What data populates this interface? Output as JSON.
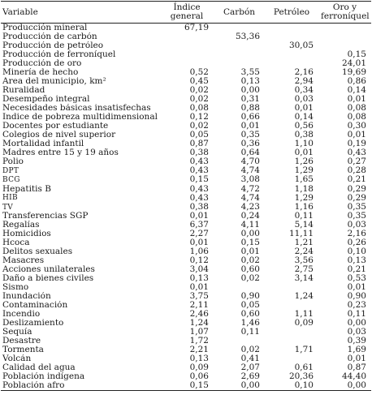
{
  "headers": {
    "variable": "Variable",
    "indice_general": "Índice general",
    "carbon": "Carbón",
    "petroleo": "Petróleo",
    "oro_ferroniquel": "Oro y ferroníquel"
  },
  "rows": [
    {
      "label": "Producción mineral",
      "ig": "67,19",
      "ca": "",
      "pe": "",
      "of": "",
      "sc": false
    },
    {
      "label": "Producción de carbón",
      "ig": "",
      "ca": "53,36",
      "pe": "",
      "of": "",
      "sc": false
    },
    {
      "label": "Producción de petróleo",
      "ig": "",
      "ca": "",
      "pe": "30,05",
      "of": "",
      "sc": false
    },
    {
      "label": "Producción de ferroníquel",
      "ig": "",
      "ca": "",
      "pe": "",
      "of": "0,15",
      "sc": false
    },
    {
      "label": "Producción de oro",
      "ig": "",
      "ca": "",
      "pe": "",
      "of": "24,01",
      "sc": false
    },
    {
      "label": "Minería de hecho",
      "ig": "0,52",
      "ca": "3,55",
      "pe": "2,16",
      "of": "19,69",
      "sc": false
    },
    {
      "label": "Área del municipio, km²",
      "ig": "0,45",
      "ca": "0,13",
      "pe": "2,94",
      "of": "0,86",
      "sc": false
    },
    {
      "label": "Ruralidad",
      "ig": "0,02",
      "ca": "0,00",
      "pe": "0,34",
      "of": "0,14",
      "sc": false
    },
    {
      "label": "Desempeño integral",
      "ig": "0,02",
      "ca": "0,31",
      "pe": "0,03",
      "of": "0,01",
      "sc": false
    },
    {
      "label": "Necesidades básicas insatisfechas",
      "ig": "0,08",
      "ca": "0,88",
      "pe": "0,01",
      "of": "0,08",
      "sc": false
    },
    {
      "label": "Índice de pobreza multidimensional",
      "ig": "0,12",
      "ca": "0,66",
      "pe": "0,14",
      "of": "0,08",
      "sc": false
    },
    {
      "label": "Docentes por estudiante",
      "ig": "0,02",
      "ca": "0,01",
      "pe": "0,56",
      "of": "0,30",
      "sc": false
    },
    {
      "label": "Colegios de nivel superior",
      "ig": "0,05",
      "ca": "0,35",
      "pe": "0,38",
      "of": "0,01",
      "sc": false
    },
    {
      "label": "Mortalidad infantil",
      "ig": "0,87",
      "ca": "0,36",
      "pe": "1,10",
      "of": "0,19",
      "sc": false
    },
    {
      "label": "Madres entre 15 y 19 años",
      "ig": "0,38",
      "ca": "0,64",
      "pe": "0,01",
      "of": "0,43",
      "sc": false
    },
    {
      "label": "Polio",
      "ig": "0,43",
      "ca": "4,70",
      "pe": "1,26",
      "of": "0,27",
      "sc": false
    },
    {
      "label": "DPT",
      "ig": "0,43",
      "ca": "4,74",
      "pe": "1,29",
      "of": "0,28",
      "sc": true
    },
    {
      "label": "BCG",
      "ig": "0,15",
      "ca": "3,08",
      "pe": "1,65",
      "of": "0,21",
      "sc": true
    },
    {
      "label": "Hepatitis B",
      "ig": "0,43",
      "ca": "4,72",
      "pe": "1,18",
      "of": "0,29",
      "sc": false
    },
    {
      "label": "HIB",
      "ig": "0,43",
      "ca": "4,74",
      "pe": "1,29",
      "of": "0,29",
      "sc": true
    },
    {
      "label": "TV",
      "ig": "0,38",
      "ca": "4,23",
      "pe": "1,16",
      "of": "0,35",
      "sc": true
    },
    {
      "label": "Transferencias SGP",
      "ig": "0,01",
      "ca": "0,24",
      "pe": "0,11",
      "of": "0,35",
      "sc": false
    },
    {
      "label": "Regalías",
      "ig": "6,37",
      "ca": "4,11",
      "pe": "5,14",
      "of": "0,03",
      "sc": false
    },
    {
      "label": "Homicidios",
      "ig": "2,27",
      "ca": "0,00",
      "pe": "11,11",
      "of": "2,16",
      "sc": false
    },
    {
      "label": "Hcoca",
      "ig": "0,01",
      "ca": "0,15",
      "pe": "1,21",
      "of": "0,26",
      "sc": false
    },
    {
      "label": "Delitos sexuales",
      "ig": "1,06",
      "ca": "0,01",
      "pe": "2,24",
      "of": "0,10",
      "sc": false
    },
    {
      "label": "Masacres",
      "ig": "0,12",
      "ca": "0,02",
      "pe": "3,56",
      "of": "0,13",
      "sc": false
    },
    {
      "label": "Acciones unilaterales",
      "ig": "3,04",
      "ca": "0,60",
      "pe": "2,75",
      "of": "0,21",
      "sc": false
    },
    {
      "label": "Daño a bienes civiles",
      "ig": "0,13",
      "ca": "0,02",
      "pe": "3,14",
      "of": "0,53",
      "sc": false
    },
    {
      "label": "Sismo",
      "ig": "0,01",
      "ca": "",
      "pe": "",
      "of": "0,01",
      "sc": false
    },
    {
      "label": "Inundación",
      "ig": "3,75",
      "ca": "0,90",
      "pe": "1,24",
      "of": "0,90",
      "sc": false
    },
    {
      "label": "Contaminación",
      "ig": "2,11",
      "ca": "0,05",
      "pe": "",
      "of": "0,23",
      "sc": false
    },
    {
      "label": "Incendio",
      "ig": "2,46",
      "ca": "0,60",
      "pe": "1,11",
      "of": "0,11",
      "sc": false
    },
    {
      "label": "Deslizamiento",
      "ig": "1,24",
      "ca": "1,46",
      "pe": "0,09",
      "of": "0,00",
      "sc": false
    },
    {
      "label": "Sequía",
      "ig": "1,07",
      "ca": "0,11",
      "pe": "",
      "of": "0,03",
      "sc": false
    },
    {
      "label": "Desastre",
      "ig": "1,72",
      "ca": "",
      "pe": "",
      "of": "0,39",
      "sc": false
    },
    {
      "label": "Tormenta",
      "ig": "2,21",
      "ca": "0,02",
      "pe": "1,71",
      "of": "1,69",
      "sc": false
    },
    {
      "label": "Volcán",
      "ig": "0,13",
      "ca": "0,41",
      "pe": "",
      "of": "0,01",
      "sc": false
    },
    {
      "label": "Calidad del agua",
      "ig": "0,09",
      "ca": "2,07",
      "pe": "0,61",
      "of": "0,87",
      "sc": false
    },
    {
      "label": "Población indígena",
      "ig": "0,06",
      "ca": "2,69",
      "pe": "20,36",
      "of": "44,40",
      "sc": false
    },
    {
      "label": "Población afro",
      "ig": "0,15",
      "ca": "0,00",
      "pe": "0,10",
      "of": "0,00",
      "sc": false
    }
  ]
}
